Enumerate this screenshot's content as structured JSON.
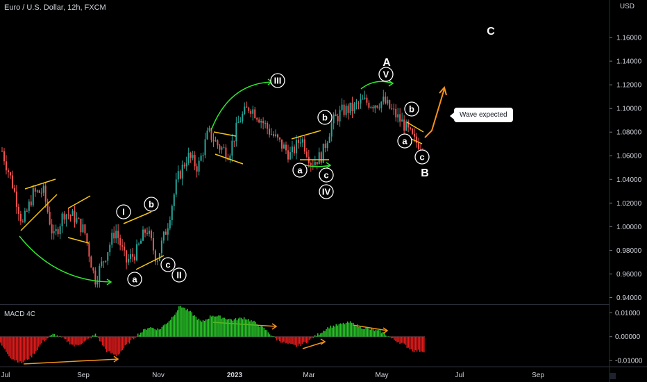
{
  "header": {
    "symbol_title": "Euro / U.S. Dollar, 12h, FXCM",
    "currency": "USD"
  },
  "indicator": {
    "label": "MACD 4C"
  },
  "callout": {
    "text": "Wave expected"
  },
  "colors": {
    "background": "#000000",
    "candle_up": "#26a69a",
    "candle_down": "#ef5350",
    "macd_up": "#28c128",
    "macd_down": "#e01b1b",
    "trendline": "#f5c518",
    "curve_arrow": "#2ee82e",
    "divergence": "#f7931a",
    "expected_arrow": "#f7931a"
  },
  "wave_labels": {
    "c_big": "C",
    "A": "A",
    "B": "B",
    "V": "V",
    "III": "III",
    "IV": "IV",
    "I": "I",
    "II": "II",
    "a": "a",
    "b": "b",
    "c": "c"
  },
  "chart_data": [
    {
      "type": "candlestick",
      "title": "Euro / U.S. Dollar, 12h, FXCM",
      "y_axis_title": "USD",
      "y_ticks": [
        "1.16000",
        "1.14000",
        "1.12000",
        "1.10000",
        "1.08000",
        "1.06000",
        "1.04000",
        "1.02000",
        "1.00000",
        "0.98000",
        "0.96000",
        "0.94000"
      ],
      "ylim": [
        0.935,
        1.18
      ],
      "x_ticks": [
        "Jul",
        "Sep",
        "Nov",
        "2023",
        "Mar",
        "May",
        "Jul",
        "Sep"
      ],
      "close_path": [
        1.064,
        1.036,
        1.002,
        1.028,
        1.03,
        0.99,
        1.012,
        1.008,
        0.996,
        0.955,
        0.975,
        0.998,
        0.97,
        0.978,
        0.999,
        0.972,
        1.0,
        1.04,
        1.06,
        1.05,
        1.08,
        1.068,
        1.062,
        1.09,
        1.102,
        1.092,
        1.08,
        1.07,
        1.06,
        1.076,
        1.054,
        1.06,
        1.088,
        1.098,
        1.1,
        1.106,
        1.104,
        1.106,
        1.096,
        1.086,
        1.072,
        1.068
      ],
      "wave_labels": [
        "I",
        "II",
        "III",
        "IV",
        "V",
        "a",
        "b",
        "c",
        "A",
        "B",
        "C"
      ],
      "annotation": "Wave expected"
    },
    {
      "type": "bar",
      "name": "MACD 4C",
      "y_ticks": [
        "0.01000",
        "0.00000",
        "-0.01000"
      ],
      "ylim": [
        -0.012,
        0.013
      ],
      "values": [
        -0.003,
        -0.009,
        -0.011,
        -0.008,
        -0.002,
        0.001,
        -0.001,
        -0.004,
        -0.002,
        0.001,
        -0.006,
        -0.008,
        -0.003,
        0.001,
        0.004,
        0.003,
        0.007,
        0.013,
        0.01,
        0.006,
        0.009,
        0.008,
        0.007,
        0.008,
        0.006,
        0.003,
        -0.001,
        -0.003,
        -0.004,
        -0.002,
        0.001,
        0.004,
        0.005,
        0.006,
        0.004,
        0.003,
        0.002,
        -0.001,
        -0.003,
        -0.006,
        -0.006
      ],
      "zero_line": true
    }
  ]
}
